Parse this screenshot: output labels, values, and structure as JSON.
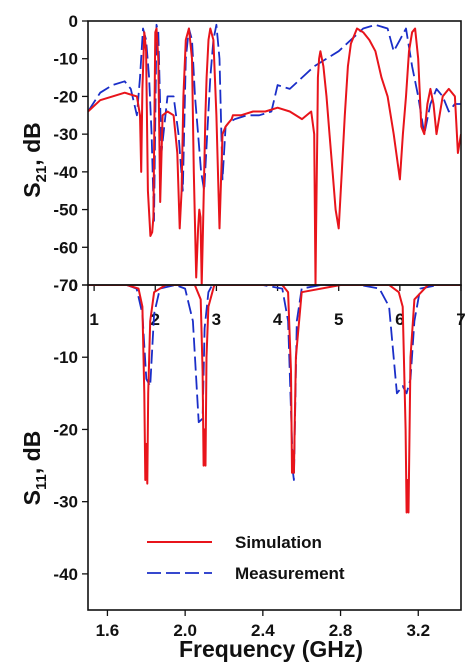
{
  "chart_data": [
    {
      "id": "top",
      "type": "line",
      "title": "",
      "ylabel_main": "S",
      "ylabel_sub": "21",
      "ylabel_tail": ", dB",
      "xlabel": "",
      "xlim": [
        0.9,
        7.0
      ],
      "ylim": [
        -70,
        0
      ],
      "xticks": [
        "1",
        "2",
        "3",
        "4",
        "5",
        "6",
        "7"
      ],
      "xtick_values": [
        1,
        2,
        3,
        4,
        5,
        6,
        7
      ],
      "yticks": [
        "0",
        "-10",
        "-20",
        "-30",
        "-40",
        "-50",
        "-60",
        "-70"
      ],
      "ytick_values": [
        0,
        -10,
        -20,
        -30,
        -40,
        -50,
        -60,
        -70
      ],
      "grid": false,
      "series": [
        {
          "name": "Simulation",
          "color": "#e8141b",
          "x": [
            0.9,
            1.1,
            1.3,
            1.5,
            1.7,
            1.75,
            1.77,
            1.79,
            1.82,
            1.85,
            1.88,
            1.92,
            1.95,
            1.97,
            2.0,
            2.02,
            2.05,
            2.08,
            2.12,
            2.2,
            2.3,
            2.36,
            2.4,
            2.43,
            2.46,
            2.5,
            2.55,
            2.6,
            2.63,
            2.67,
            2.7,
            2.72,
            2.74,
            2.76,
            2.78,
            2.8,
            2.82,
            2.84,
            2.87,
            2.9,
            2.95,
            3.0,
            3.05,
            3.1,
            3.15,
            3.2,
            3.25,
            3.27,
            3.3,
            3.4,
            3.6,
            3.8,
            4.0,
            4.2,
            4.4,
            4.55,
            4.6,
            4.62,
            4.63,
            4.65,
            4.66,
            4.68,
            4.7,
            4.75,
            4.8,
            4.85,
            4.9,
            4.95,
            5.0,
            5.05,
            5.1,
            5.15,
            5.2,
            5.3,
            5.4,
            5.5,
            5.6,
            5.7,
            5.8,
            5.9,
            6.0,
            6.05,
            6.1,
            6.15,
            6.2,
            6.25,
            6.3,
            6.35,
            6.4,
            6.45,
            6.5,
            6.55,
            6.6,
            6.7,
            6.8,
            6.9,
            6.95,
            7.0
          ],
          "values": [
            -24,
            -21,
            -20,
            -19,
            -20,
            -25,
            -40,
            -18,
            -3,
            -8,
            -45,
            -57,
            -56,
            -52,
            -3,
            -2,
            -10,
            -48,
            -25,
            -24,
            -25,
            -35,
            -55,
            -45,
            -20,
            -5,
            -2,
            -10,
            -40,
            -68,
            -55,
            -50,
            -52,
            -70,
            -55,
            -40,
            -25,
            -15,
            -5,
            -2,
            -5,
            -25,
            -55,
            -30,
            -28,
            -27,
            -26,
            -25,
            -25,
            -25,
            -24,
            -24,
            -23,
            -24,
            -26,
            -24,
            -30,
            -70,
            -55,
            -30,
            -15,
            -10,
            -8,
            -12,
            -20,
            -30,
            -40,
            -50,
            -55,
            -40,
            -25,
            -12,
            -6,
            -2,
            -3,
            -5,
            -8,
            -15,
            -20,
            -30,
            -42,
            -30,
            -20,
            -8,
            -3,
            -2,
            -10,
            -28,
            -30,
            -22,
            -18,
            -22,
            -30,
            -20,
            -18,
            -20,
            -35,
            -30
          ]
        },
        {
          "name": "Measurement",
          "color": "#1a2ec8",
          "x": [
            0.9,
            1.1,
            1.3,
            1.5,
            1.6,
            1.7,
            1.75,
            1.8,
            1.85,
            1.9,
            1.94,
            1.98,
            2.02,
            2.05,
            2.1,
            2.2,
            2.3,
            2.38,
            2.45,
            2.5,
            2.55,
            2.6,
            2.65,
            2.7,
            2.75,
            2.8,
            2.85,
            2.9,
            2.95,
            3.0,
            3.05,
            3.1,
            3.15,
            3.2,
            3.3,
            3.5,
            3.7,
            3.9,
            4.0,
            4.2,
            4.4,
            4.6,
            4.8,
            5.0,
            5.2,
            5.4,
            5.6,
            5.8,
            5.9,
            6.0,
            6.1,
            6.2,
            6.3,
            6.4,
            6.5,
            6.6,
            6.7,
            6.8,
            6.9,
            7.0
          ],
          "values": [
            -24,
            -19,
            -17,
            -16,
            -18,
            -25,
            -15,
            -2,
            -5,
            -15,
            -30,
            -53,
            -1,
            -3,
            -35,
            -20,
            -20,
            -30,
            -45,
            -10,
            -2,
            -5,
            -20,
            -30,
            -40,
            -45,
            -30,
            -15,
            -5,
            -1,
            -10,
            -42,
            -28,
            -27,
            -26,
            -25,
            -25,
            -24,
            -17,
            -18,
            -15,
            -12,
            -10,
            -8,
            -5,
            -2,
            -1,
            -2,
            -8,
            -5,
            -2,
            -12,
            -20,
            -30,
            -22,
            -18,
            -20,
            -24,
            -22,
            -22
          ]
        }
      ]
    },
    {
      "id": "bottom",
      "type": "line",
      "title": "",
      "ylabel_main": "S",
      "ylabel_sub": "11",
      "ylabel_tail": ", dB",
      "xlabel": "Frequency (GHz)",
      "xlim": [
        1.5,
        3.42
      ],
      "ylim": [
        -45,
        0
      ],
      "xticks": [
        "1.6",
        "2.0",
        "2.4",
        "2.8",
        "3.2"
      ],
      "xtick_values": [
        1.6,
        2.0,
        2.4,
        2.8,
        3.2
      ],
      "yticks": [
        "0",
        "-10",
        "-20",
        "-30",
        "-40"
      ],
      "ytick_values": [
        0,
        -10,
        -20,
        -30,
        -40
      ],
      "grid": false,
      "series": [
        {
          "name": "Simulation",
          "color": "#e8141b",
          "x": [
            1.5,
            1.7,
            1.76,
            1.78,
            1.79,
            1.795,
            1.8,
            1.805,
            1.81,
            1.82,
            1.84,
            1.9,
            2.05,
            2.08,
            2.09,
            2.095,
            2.1,
            2.105,
            2.11,
            2.12,
            2.15,
            2.3,
            2.5,
            2.53,
            2.545,
            2.55,
            2.555,
            2.56,
            2.57,
            2.6,
            2.8,
            3.05,
            3.1,
            3.12,
            3.135,
            3.14,
            3.145,
            3.15,
            3.16,
            3.18,
            3.25,
            3.42
          ],
          "values": [
            0,
            0,
            -0.5,
            -3,
            -15,
            -27,
            -22,
            -27.5,
            -15,
            -5,
            -1,
            0,
            0,
            -2,
            -12,
            -25,
            -20,
            -25,
            -10,
            -3,
            0,
            0,
            0,
            -1,
            -12,
            -26,
            -23,
            -26,
            -10,
            -1,
            0,
            0,
            -1,
            -3,
            -20,
            -31.5,
            -27,
            -31.5,
            -10,
            -2,
            0,
            0
          ]
        },
        {
          "name": "Measurement",
          "color": "#1a2ec8",
          "x": [
            1.5,
            1.7,
            1.75,
            1.78,
            1.8,
            1.82,
            1.84,
            1.87,
            1.95,
            2.0,
            2.04,
            2.07,
            2.09,
            2.1,
            2.12,
            2.14,
            2.2,
            2.4,
            2.5,
            2.53,
            2.555,
            2.56,
            2.575,
            2.6,
            2.7,
            2.9,
            3.0,
            3.05,
            3.09,
            3.12,
            3.14,
            3.16,
            3.18,
            3.21,
            3.3,
            3.42
          ],
          "values": [
            0,
            0,
            -0.5,
            -4,
            -13,
            -14,
            -4,
            -0.5,
            0,
            -0.5,
            -5,
            -19,
            -18.5,
            -6,
            -1,
            0,
            0,
            0,
            -0.5,
            -5,
            -26,
            -27,
            -5,
            -0.5,
            0,
            0,
            -0.5,
            -3,
            -15,
            -14,
            -15,
            -13,
            -5,
            -0.5,
            0,
            0
          ]
        }
      ],
      "legend": {
        "placement": "bottom-left",
        "entries": [
          {
            "label": "Simulation",
            "style": "solid",
            "color": "#e8141b"
          },
          {
            "label": "Measurement",
            "style": "dashed",
            "color": "#1a2ec8"
          }
        ]
      }
    }
  ]
}
